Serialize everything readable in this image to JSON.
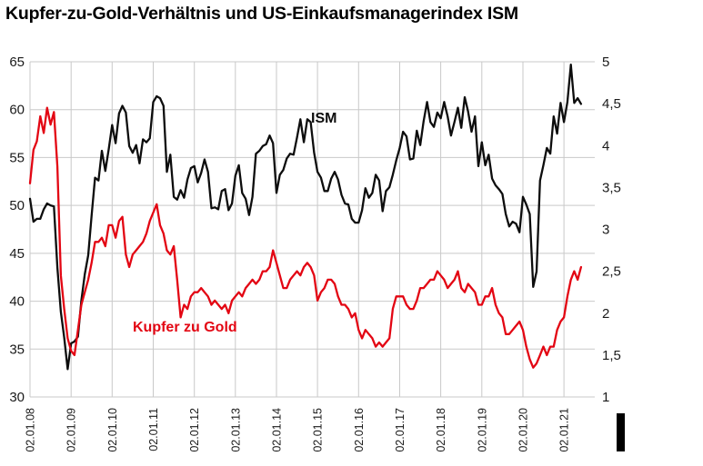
{
  "title": "Kupfer-zu-Gold-Verhältnis und US-Einkaufsmanagerindex ISM",
  "colors": {
    "ism_line": "#0d0d0d",
    "copper_line": "#e30613",
    "grid": "#c9c9c9",
    "tick_text": "#1a1a1a"
  },
  "chart_data": {
    "type": "line",
    "title": "Kupfer-zu-Gold-Verhältnis und US-Einkaufsmanagerindex ISM",
    "xlabel": "",
    "ylabel_left": "ISM",
    "ylabel_right": "Kupfer zu Gold",
    "grid": true,
    "legend_position": "inline-annotations",
    "x_tick_labels": [
      "02.01.08",
      "02.01.09",
      "02.01.10",
      "02.01.11",
      "02.01.12",
      "02.01.13",
      "02.01.14",
      "02.01.15",
      "02.01.16",
      "02.01.17",
      "02.01.18",
      "02.01.19",
      "02.01.20",
      "02.01.21"
    ],
    "x_axis": {
      "start_year": 2008,
      "end_year": 2021.75,
      "points_per_year": 12
    },
    "left_axis": {
      "min": 30,
      "max": 65,
      "ticks": [
        30,
        35,
        40,
        45,
        50,
        55,
        60,
        65
      ],
      "tick_labels": [
        "30",
        "35",
        "40",
        "45",
        "50",
        "55",
        "60",
        "65"
      ]
    },
    "right_axis": {
      "min": 1,
      "max": 5,
      "ticks": [
        1,
        1.5,
        2,
        2.5,
        3,
        3.5,
        4,
        4.5,
        5
      ],
      "tick_labels": [
        "1",
        "1,5",
        "2",
        "2,5",
        "3",
        "3,5",
        "4",
        "4,5",
        "5"
      ]
    },
    "series": [
      {
        "name": "ISM",
        "axis": "left",
        "color": "#0d0d0d",
        "values": [
          50.7,
          48.3,
          48.6,
          48.6,
          49.6,
          50.2,
          50,
          49.9,
          43.5,
          38.9,
          36.2,
          32.9,
          35.6,
          35.8,
          36.3,
          40.1,
          42.8,
          44.8,
          48.9,
          52.9,
          52.6,
          55.7,
          53.6,
          55.9,
          58.4,
          56.5,
          59.6,
          60.4,
          59.7,
          56.2,
          55.5,
          56.3,
          54.4,
          56.9,
          56.6,
          57,
          60.8,
          61.4,
          61.2,
          60.4,
          53.5,
          55.3,
          50.9,
          50.6,
          51.6,
          50.8,
          52.7,
          53.9,
          54.1,
          52.4,
          53.4,
          54.8,
          53.5,
          49.7,
          49.8,
          49.6,
          51.5,
          51.7,
          49.5,
          50.2,
          53.1,
          54.2,
          51.3,
          50.7,
          49,
          50.9,
          55.4,
          55.7,
          56.2,
          56.4,
          57.3,
          56.5,
          51.3,
          53.2,
          53.7,
          54.9,
          55.4,
          55.3,
          57.1,
          59,
          56.6,
          59,
          58.7,
          55.5,
          53.5,
          52.9,
          51.5,
          51.5,
          52.8,
          53.5,
          52.7,
          51.1,
          50.2,
          50.1,
          48.6,
          48.2,
          48.2,
          49.5,
          51.8,
          50.8,
          51.3,
          53.2,
          52.6,
          49.4,
          51.5,
          51.9,
          53.2,
          54.7,
          56,
          57.7,
          57.2,
          54.8,
          54.9,
          57.8,
          56.3,
          58.8,
          60.8,
          58.7,
          58.2,
          59.7,
          59.1,
          60.8,
          59.3,
          57.3,
          58.7,
          60.2,
          58.1,
          61.3,
          59.8,
          57.7,
          59.3,
          54.1,
          56.6,
          54.2,
          55.3,
          52.8,
          52.1,
          51.7,
          51.2,
          49.1,
          47.8,
          48.3,
          48.1,
          47.2,
          50.9,
          50.1,
          49.1,
          41.5,
          43.1,
          52.6,
          54.2,
          56,
          55.4,
          59.3,
          57.5,
          60.7,
          58.7,
          60.8,
          64.7,
          60.7,
          61.2,
          60.6
        ]
      },
      {
        "name": "Kupfer zu Gold",
        "axis": "right",
        "color": "#e30613",
        "values": [
          3.55,
          3.95,
          4.05,
          4.35,
          4.15,
          4.45,
          4.25,
          4.4,
          3.75,
          2.45,
          2.05,
          1.7,
          1.55,
          1.5,
          1.8,
          2.1,
          2.25,
          2.4,
          2.6,
          2.85,
          2.85,
          2.9,
          2.8,
          3.05,
          3.05,
          2.9,
          3.1,
          3.15,
          2.7,
          2.55,
          2.7,
          2.75,
          2.8,
          2.85,
          2.95,
          3.1,
          3.2,
          3.3,
          3.05,
          2.95,
          2.75,
          2.7,
          2.8,
          2.4,
          1.95,
          2.1,
          2.05,
          2.2,
          2.25,
          2.25,
          2.3,
          2.25,
          2.2,
          2.1,
          2.15,
          2.1,
          2.05,
          2.1,
          2,
          2.15,
          2.2,
          2.25,
          2.2,
          2.3,
          2.35,
          2.4,
          2.35,
          2.4,
          2.5,
          2.5,
          2.55,
          2.75,
          2.6,
          2.45,
          2.3,
          2.3,
          2.4,
          2.45,
          2.5,
          2.45,
          2.55,
          2.6,
          2.55,
          2.45,
          2.15,
          2.25,
          2.3,
          2.4,
          2.4,
          2.35,
          2.2,
          2.1,
          2.1,
          2.05,
          1.95,
          2,
          1.8,
          1.7,
          1.8,
          1.75,
          1.7,
          1.6,
          1.65,
          1.6,
          1.65,
          1.7,
          2.05,
          2.2,
          2.2,
          2.2,
          2.1,
          2.05,
          2.05,
          2.15,
          2.3,
          2.3,
          2.35,
          2.4,
          2.4,
          2.5,
          2.45,
          2.4,
          2.3,
          2.35,
          2.4,
          2.5,
          2.3,
          2.25,
          2.35,
          2.3,
          2.25,
          2.1,
          2.1,
          2.2,
          2.2,
          2.3,
          2.1,
          2,
          1.95,
          1.75,
          1.75,
          1.8,
          1.85,
          1.9,
          1.8,
          1.6,
          1.45,
          1.35,
          1.4,
          1.5,
          1.6,
          1.5,
          1.6,
          1.6,
          1.8,
          1.9,
          1.95,
          2.2,
          2.4,
          2.5,
          2.4,
          2.55
        ]
      }
    ]
  }
}
